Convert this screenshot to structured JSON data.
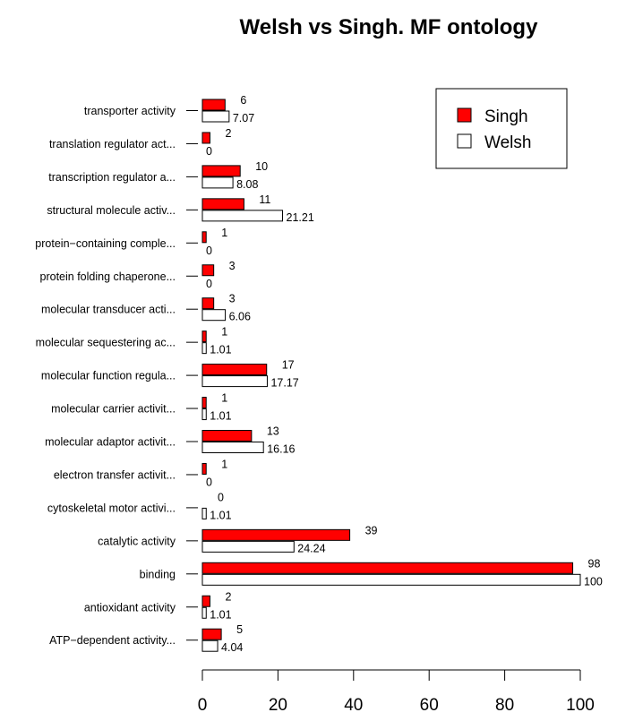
{
  "chart_data": {
    "type": "bar",
    "orientation": "horizontal",
    "title": "Welsh vs Singh. MF ontology",
    "xlabel": "",
    "ylabel": "",
    "xlim": [
      0,
      100
    ],
    "xticks": [
      0,
      20,
      40,
      60,
      80,
      100
    ],
    "grid": false,
    "legend_position": "top-right",
    "categories": [
      "ATP−dependent activity...",
      "antioxidant activity",
      "binding",
      "catalytic activity",
      "cytoskeletal motor activi...",
      "electron transfer activit...",
      "molecular adaptor activit...",
      "molecular carrier activit...",
      "molecular function regula...",
      "molecular sequestering ac...",
      "molecular transducer acti...",
      "protein folding chaperone...",
      "protein−containing comple...",
      "structural molecule activ...",
      "transcription regulator a...",
      "translation regulator act...",
      "transporter activity"
    ],
    "series": [
      {
        "name": "Singh",
        "color": "#ff0000",
        "values": [
          5,
          2,
          98,
          39,
          0,
          1,
          13,
          1,
          17,
          1,
          3,
          3,
          1,
          11,
          10,
          2,
          6
        ],
        "labels": [
          "5",
          "2",
          "98",
          "39",
          "0",
          "1",
          "13",
          "1",
          "17",
          "1",
          "3",
          "3",
          "1",
          "11",
          "10",
          "2",
          "6"
        ]
      },
      {
        "name": "Welsh",
        "color": "#ffffff",
        "values": [
          4.04,
          1.01,
          100,
          24.24,
          1.01,
          0,
          16.16,
          1.01,
          17.17,
          1.01,
          6.06,
          0,
          0,
          21.21,
          8.08,
          0,
          7.07
        ],
        "labels": [
          "4.04",
          "1.01",
          "100",
          "24.24",
          "1.01",
          "0",
          "16.16",
          "1.01",
          "17.17",
          "1.01",
          "6.06",
          "0",
          "0",
          "21.21",
          "8.08",
          "0",
          "7.07"
        ]
      }
    ]
  }
}
